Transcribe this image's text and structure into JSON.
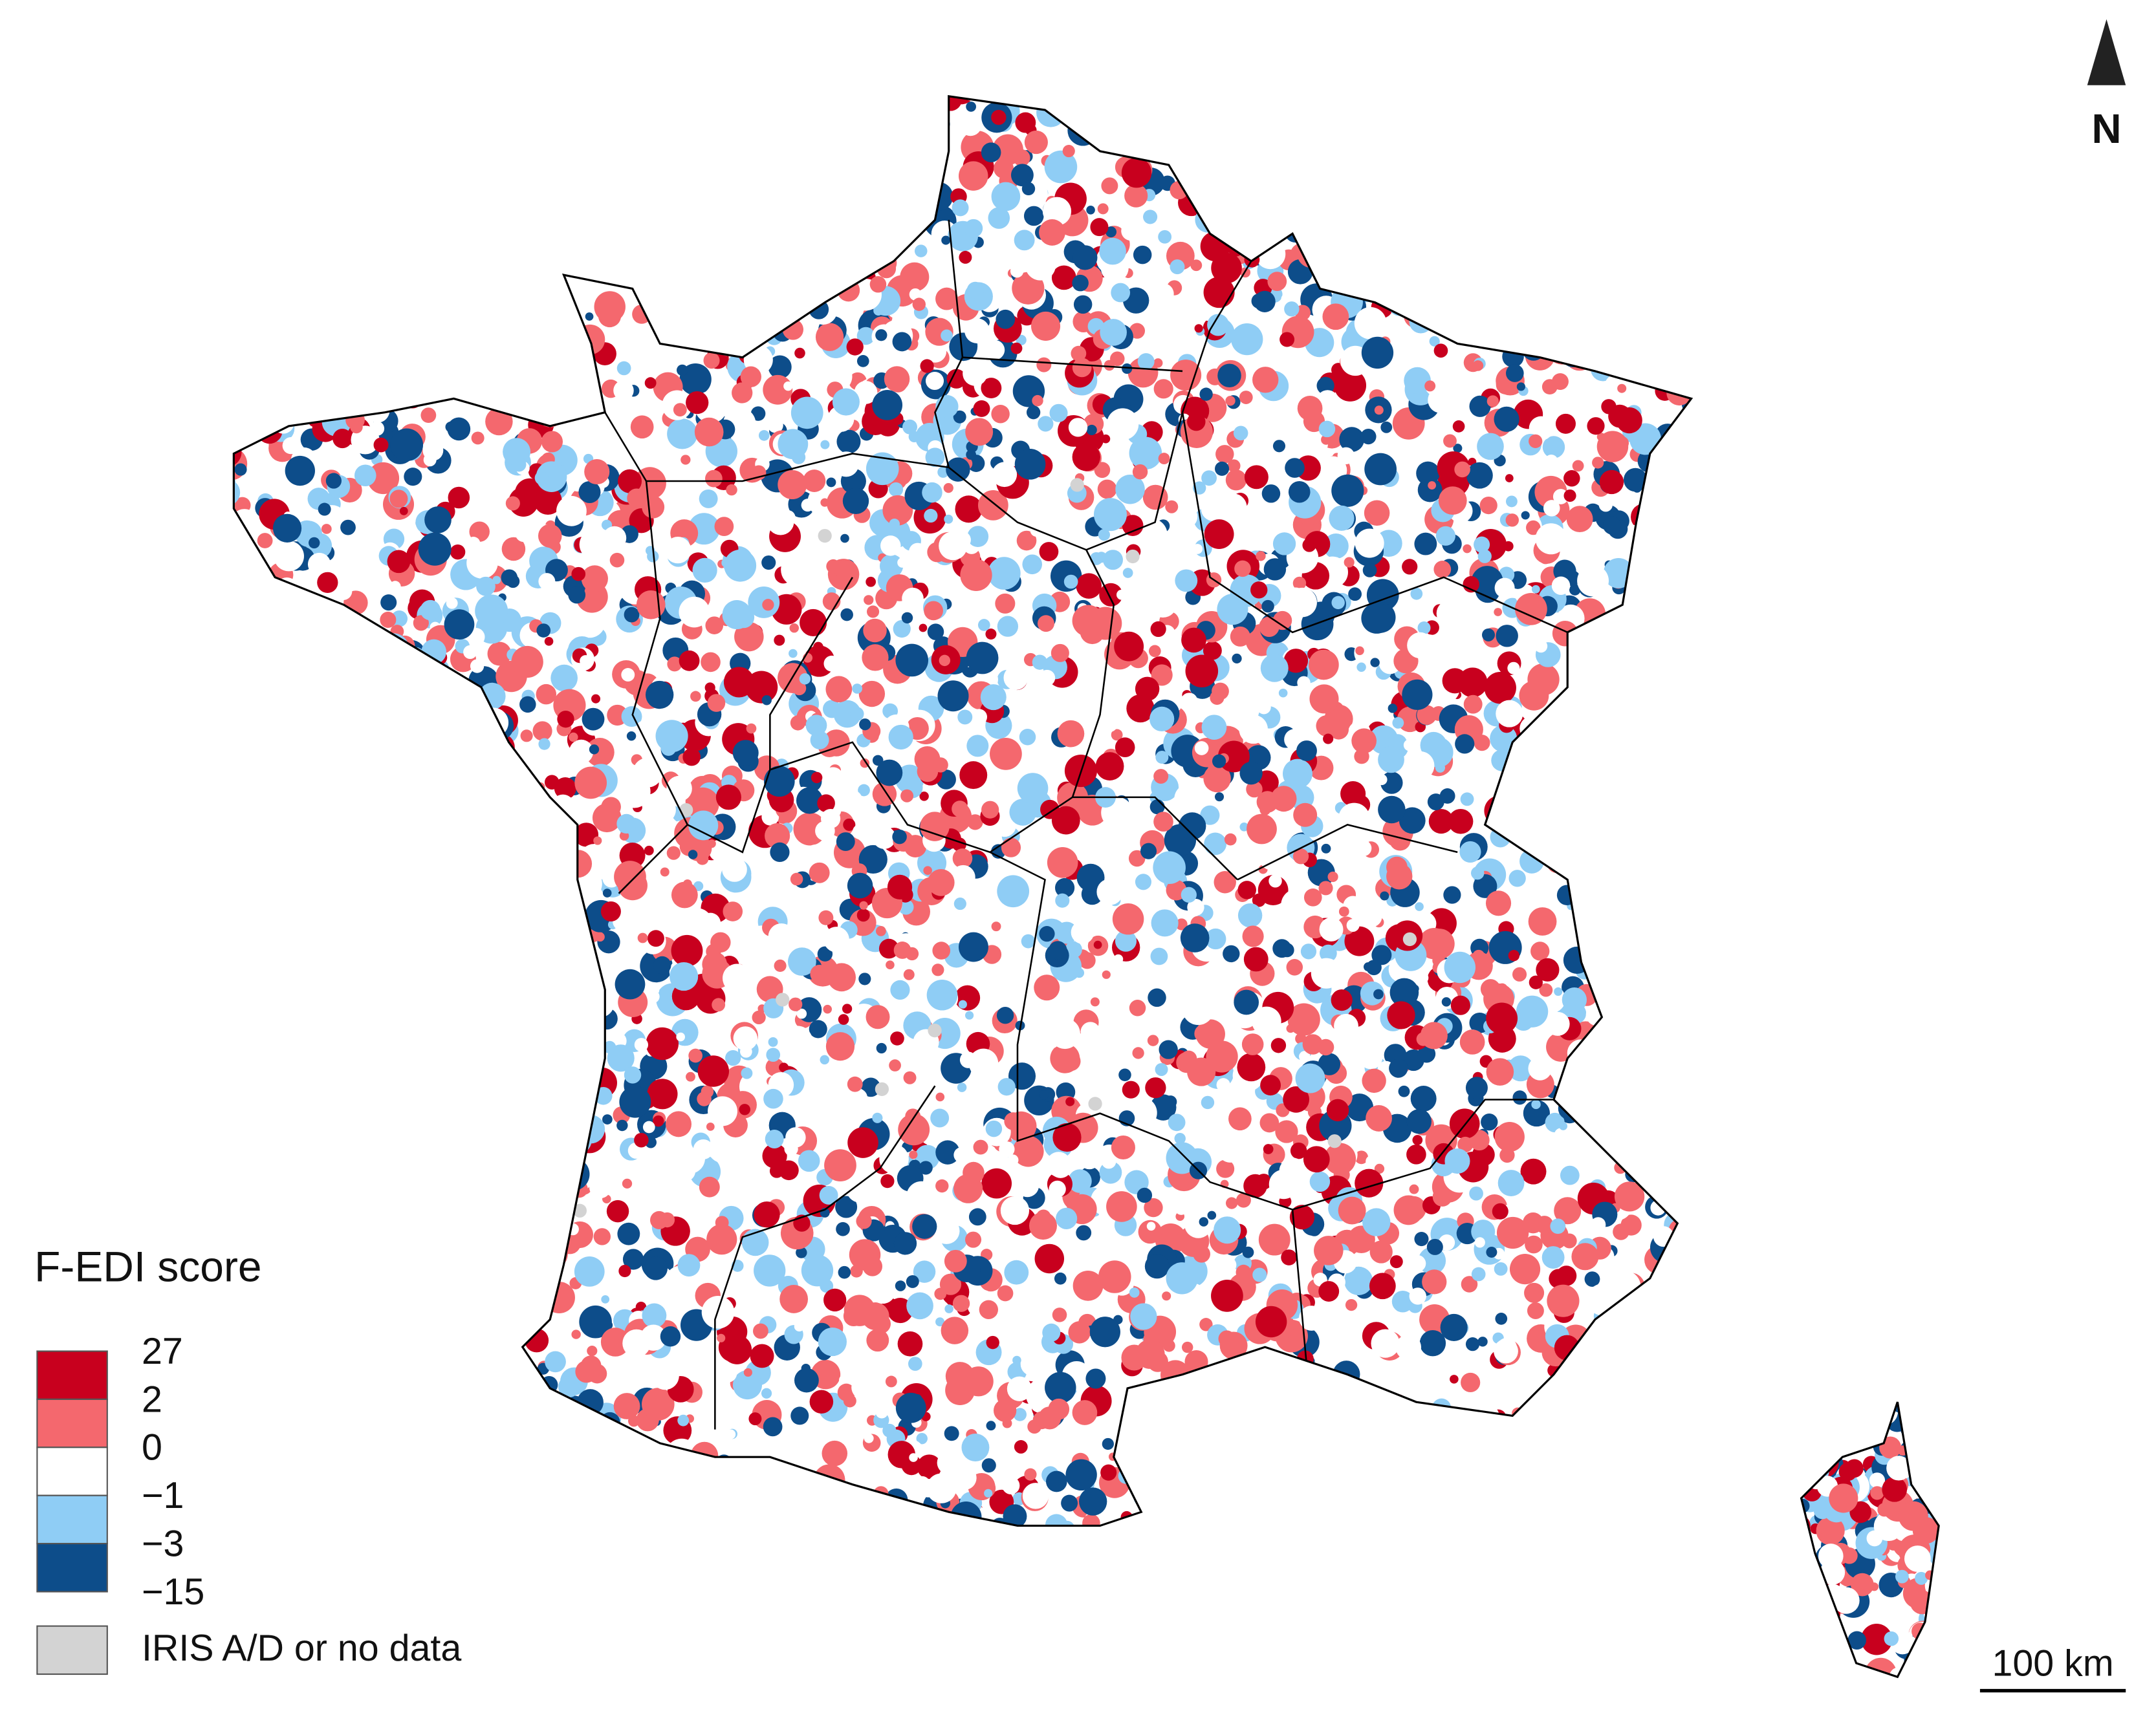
{
  "legend": {
    "title": "F-EDI score",
    "class_colors": [
      "#c8001e",
      "#f4686e",
      "#ffffff",
      "#8fcdf5",
      "#0d4d8a"
    ],
    "breaks": [
      "27",
      "2",
      "0",
      "−1",
      "−3",
      "−15"
    ],
    "no_data": {
      "label": "IRIS A/D or no data",
      "color": "#d3d3d3"
    }
  },
  "north_label": "N",
  "scale_bar": "100 km"
}
